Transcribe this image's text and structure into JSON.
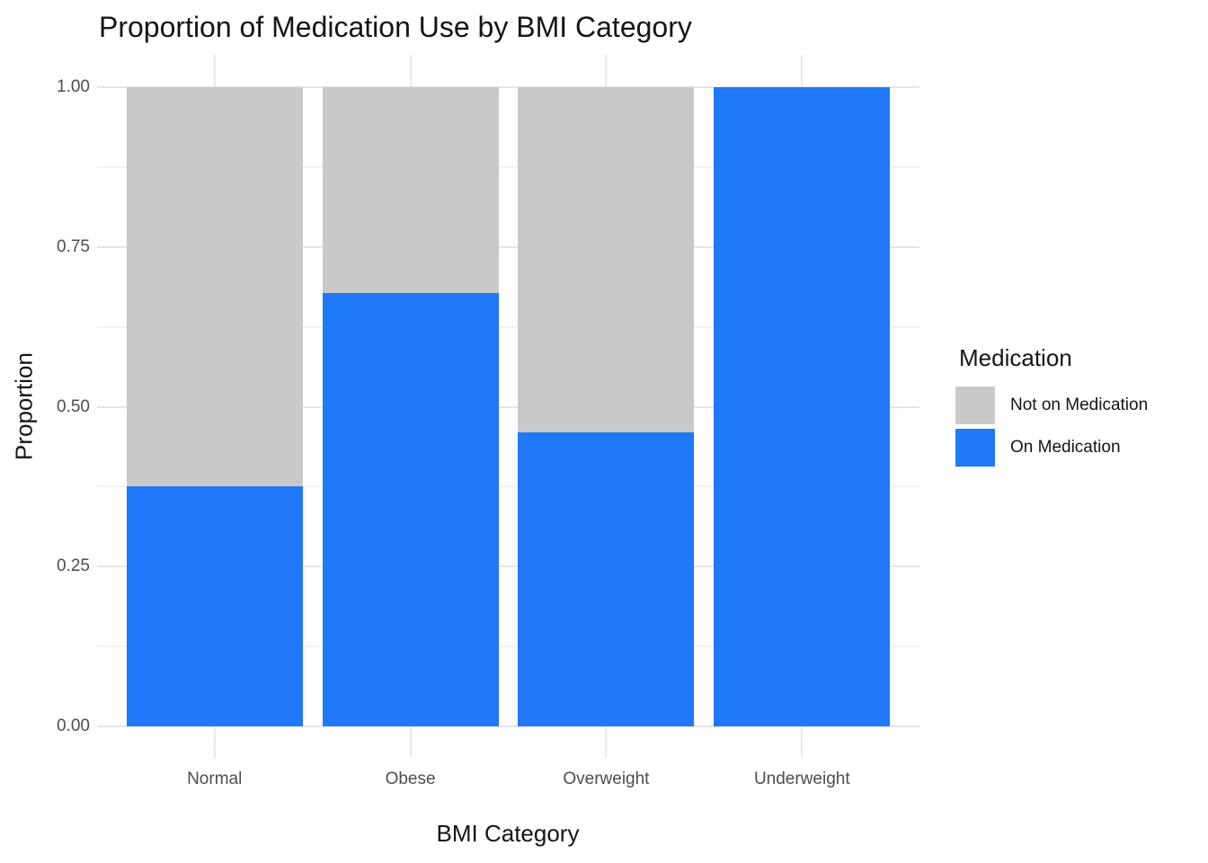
{
  "title": "Proportion of Medication Use by BMI Category",
  "axes": {
    "x_label": "BMI Category",
    "y_label": "Proportion",
    "y_ticks": [
      {
        "label": "1.00",
        "value": 1.0
      },
      {
        "label": "0.75",
        "value": 0.75
      },
      {
        "label": "0.50",
        "value": 0.5
      },
      {
        "label": "0.25",
        "value": 0.25
      },
      {
        "label": "0.00",
        "value": 0.0
      }
    ]
  },
  "legend": {
    "title": "Medication",
    "items": [
      {
        "label": "Not on Medication",
        "color": "#c9c9c9"
      },
      {
        "label": "On Medication",
        "color": "#1e78f7"
      }
    ]
  },
  "chart_data": {
    "type": "bar",
    "stacked": true,
    "orientation": "vertical",
    "title": "Proportion of Medication Use by BMI Category",
    "xlabel": "BMI Category",
    "ylabel": "Proportion",
    "categories": [
      "Normal",
      "Obese",
      "Overweight",
      "Underweight"
    ],
    "series": [
      {
        "name": "Not on Medication",
        "color": "#c9c9c9",
        "values": [
          0.625,
          0.322,
          0.54,
          0.0
        ]
      },
      {
        "name": "On Medication",
        "color": "#1e78f7",
        "values": [
          0.375,
          0.678,
          0.46,
          1.0
        ]
      }
    ],
    "ylim": [
      0,
      1
    ],
    "y_major_ticks": [
      0,
      0.25,
      0.5,
      0.75,
      1.0
    ],
    "y_minor_ticks": [
      0.125,
      0.375,
      0.625,
      0.875
    ],
    "grid": true,
    "legend_position": "right",
    "legend_title": "Medication"
  },
  "colors": {
    "background": "#ffffff",
    "major_grid": "#e6e6e6",
    "minor_grid": "#f2f2f2",
    "tick_label": "#4d4d4d",
    "text": "#151515",
    "bar_blue": "#1e78f7",
    "bar_gray": "#c9c9c9"
  }
}
